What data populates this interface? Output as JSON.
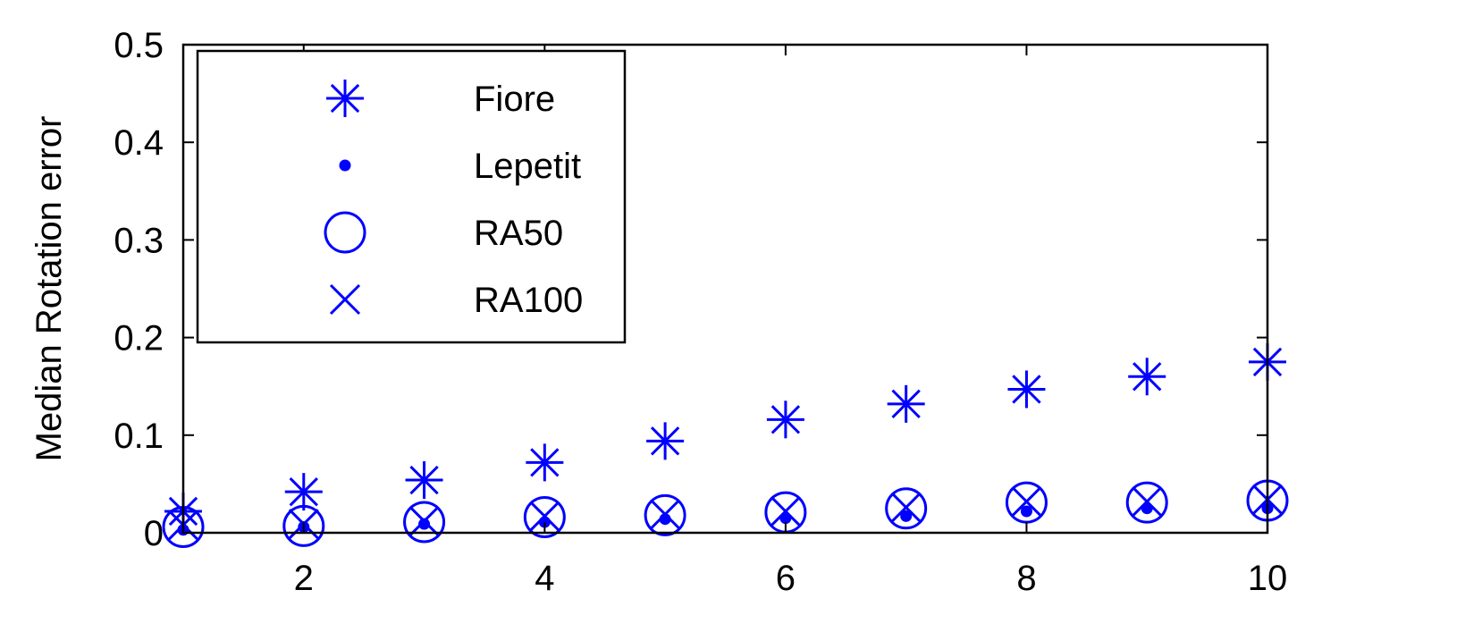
{
  "chart_data": {
    "type": "scatter",
    "title": "",
    "xlabel": "",
    "ylabel": "Median Rotation error",
    "xlim": [
      1,
      10
    ],
    "ylim": [
      0,
      0.5
    ],
    "x_ticks": [
      2,
      4,
      6,
      8,
      10
    ],
    "x_tick_labels": [
      "2",
      "4",
      "6",
      "8",
      "10"
    ],
    "y_ticks": [
      0,
      0.1,
      0.2,
      0.3,
      0.4,
      0.5
    ],
    "y_tick_labels": [
      "0",
      "0.1",
      "0.2",
      "0.3",
      "0.4",
      "0.5"
    ],
    "grid": false,
    "legend_position": "top-left",
    "x": [
      1,
      2,
      3,
      4,
      5,
      6,
      7,
      8,
      9,
      10
    ],
    "series": [
      {
        "name": "Fiore",
        "marker": "asterisk",
        "color": "#0000ff",
        "values": [
          0.022,
          0.042,
          0.054,
          0.072,
          0.094,
          0.116,
          0.132,
          0.147,
          0.16,
          0.175
        ]
      },
      {
        "name": "Lepetit",
        "marker": "dot",
        "color": "#0000ff",
        "values": [
          0.003,
          0.006,
          0.009,
          0.011,
          0.014,
          0.015,
          0.017,
          0.022,
          0.025,
          0.025
        ]
      },
      {
        "name": "RA50",
        "marker": "circle",
        "color": "#0000ff",
        "values": [
          0.006,
          0.007,
          0.011,
          0.016,
          0.018,
          0.021,
          0.025,
          0.031,
          0.031,
          0.033
        ]
      },
      {
        "name": "RA100",
        "marker": "x",
        "color": "#0000ff",
        "values": [
          0.008,
          0.009,
          0.012,
          0.017,
          0.019,
          0.022,
          0.026,
          0.032,
          0.032,
          0.034
        ]
      }
    ]
  }
}
